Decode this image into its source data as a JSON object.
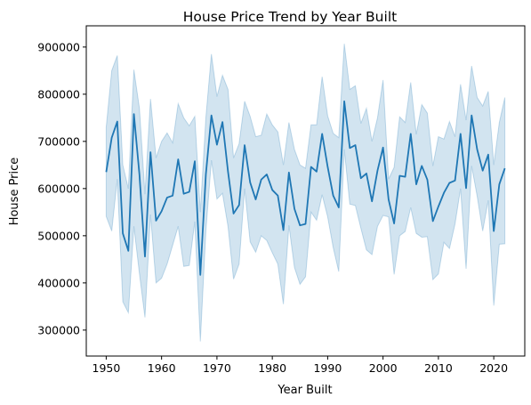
{
  "chart_data": {
    "type": "line",
    "title": "House Price Trend by Year Built",
    "xlabel": "Year Built",
    "ylabel": "House Price",
    "xlim": [
      1946.4,
      2025.6
    ],
    "ylim": [
      245000,
      945000
    ],
    "xticks": [
      1950,
      1960,
      1970,
      1980,
      1990,
      2000,
      2010,
      2020
    ],
    "xtick_labels": [
      "1950",
      "1960",
      "1970",
      "1980",
      "1990",
      "2000",
      "2010",
      "2020"
    ],
    "yticks": [
      300000,
      400000,
      500000,
      600000,
      700000,
      800000,
      900000
    ],
    "ytick_labels": [
      "300000",
      "400000",
      "500000",
      "600000",
      "700000",
      "800000",
      "900000"
    ],
    "grid": false,
    "legend": false,
    "line_color": "#1f77b4",
    "band_color": "#1f77b4",
    "band_opacity": 0.2,
    "series": [
      {
        "x": [
          1950,
          1951,
          1952,
          1953,
          1954,
          1955,
          1956,
          1957,
          1958,
          1959,
          1960,
          1961,
          1962,
          1963,
          1964,
          1965,
          1966,
          1967,
          1968,
          1969,
          1970,
          1971,
          1972,
          1973,
          1974,
          1975,
          1976,
          1977,
          1978,
          1979,
          1980,
          1981,
          1982,
          1983,
          1984,
          1985,
          1986,
          1987,
          1988,
          1989,
          1990,
          1991,
          1992,
          1993,
          1994,
          1995,
          1996,
          1997,
          1998,
          1999,
          2000,
          2001,
          2002,
          2003,
          2004,
          2005,
          2006,
          2007,
          2008,
          2009,
          2010,
          2011,
          2012,
          2013,
          2014,
          2015,
          2016,
          2017,
          2018,
          2019,
          2020,
          2021,
          2022
        ],
        "y": [
          635000,
          708000,
          742000,
          505000,
          468000,
          758000,
          630000,
          456000,
          677000,
          532000,
          552000,
          581000,
          585000,
          662000,
          589000,
          593000,
          658000,
          417000,
          630000,
          755000,
          693000,
          741000,
          636000,
          547000,
          565000,
          692000,
          613000,
          577000,
          619000,
          630000,
          597000,
          585000,
          512000,
          634000,
          557000,
          522000,
          525000,
          646000,
          636000,
          716000,
          646000,
          585000,
          560000,
          785000,
          686000,
          692000,
          622000,
          632000,
          573000,
          638000,
          687000,
          577000,
          526000,
          627000,
          625000,
          716000,
          609000,
          648000,
          619000,
          531000,
          562000,
          591000,
          612000,
          617000,
          716000,
          601000,
          755000,
          683000,
          638000,
          672000,
          510000,
          609000,
          643000
        ],
        "lower": [
          541000,
          510000,
          620000,
          360000,
          337000,
          520000,
          420000,
          327000,
          545000,
          400000,
          410000,
          440000,
          480000,
          520000,
          435000,
          437000,
          530000,
          276000,
          510000,
          660000,
          578000,
          590000,
          520000,
          408000,
          440000,
          600000,
          487000,
          465000,
          500000,
          490000,
          464000,
          440000,
          355000,
          522000,
          433000,
          397000,
          413000,
          550000,
          533000,
          587000,
          540000,
          475000,
          424000,
          683000,
          567000,
          564000,
          516000,
          470000,
          460000,
          520000,
          543000,
          540000,
          418000,
          500000,
          509000,
          560000,
          505000,
          497000,
          498000,
          407000,
          419000,
          486000,
          473000,
          525000,
          600000,
          430000,
          648000,
          584000,
          510000,
          575000,
          352000,
          482000,
          483000
        ],
        "upper": [
          730000,
          850000,
          882000,
          650000,
          600000,
          852000,
          770000,
          588000,
          790000,
          665000,
          700000,
          718000,
          697000,
          780000,
          750000,
          733000,
          753000,
          550000,
          750000,
          885000,
          795000,
          840000,
          810000,
          665000,
          695000,
          785000,
          753000,
          710000,
          713000,
          758000,
          735000,
          720000,
          650000,
          740000,
          683000,
          650000,
          643000,
          735000,
          735000,
          837000,
          754000,
          717000,
          708000,
          907000,
          810000,
          818000,
          738000,
          770000,
          700000,
          750000,
          830000,
          620000,
          645000,
          752000,
          740000,
          825000,
          715000,
          778000,
          760000,
          648000,
          710000,
          705000,
          742000,
          710000,
          821000,
          745000,
          860000,
          793000,
          775000,
          806000,
          650000,
          740000,
          793000
        ]
      }
    ]
  }
}
